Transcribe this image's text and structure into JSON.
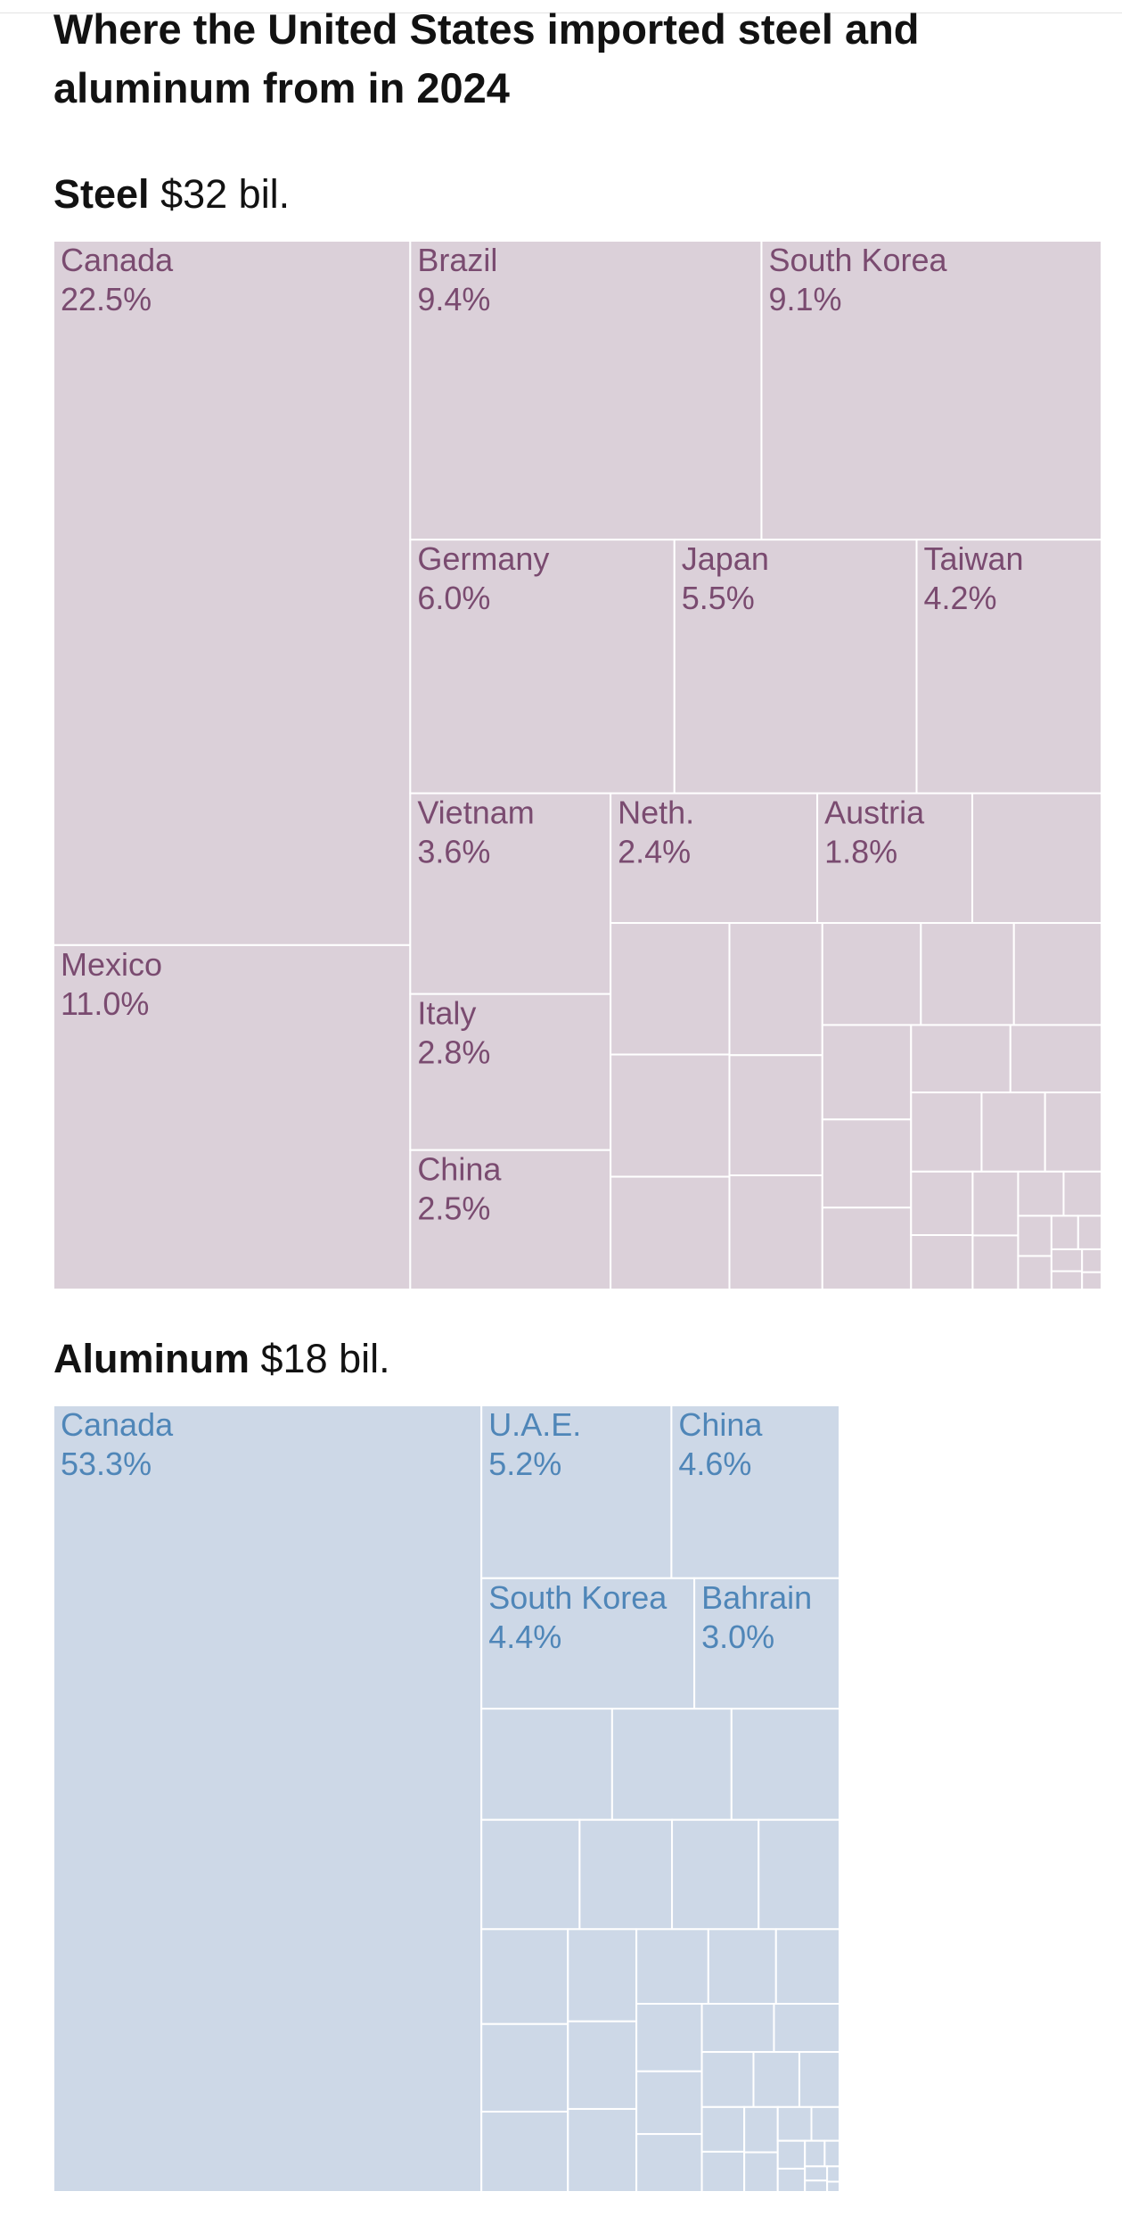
{
  "headline": "Where the United States imported steel and aluminum from in 2024",
  "chart_data": [
    {
      "type": "treemap",
      "title": "Steel",
      "total": "$32 bil.",
      "colors": {
        "fill": "#dbd0d9",
        "text": "#7a4b70",
        "stroke": "#ffffff"
      },
      "items": [
        {
          "name": "Canada",
          "value": 22.5,
          "label": "22.5%"
        },
        {
          "name": "Mexico",
          "value": 11.0,
          "label": "11.0%"
        },
        {
          "name": "Brazil",
          "value": 9.4,
          "label": "9.4%"
        },
        {
          "name": "South Korea",
          "value": 9.1,
          "label": "9.1%"
        },
        {
          "name": "Germany",
          "value": 6.0,
          "label": "6.0%"
        },
        {
          "name": "Japan",
          "value": 5.5,
          "label": "5.5%"
        },
        {
          "name": "Taiwan",
          "value": 4.2,
          "label": "4.2%"
        },
        {
          "name": "Vietnam",
          "value": 3.6,
          "label": "3.6%"
        },
        {
          "name": "Italy",
          "value": 2.8,
          "label": "2.8%"
        },
        {
          "name": "China",
          "value": 2.5,
          "label": "2.5%"
        },
        {
          "name": "Neth.",
          "value": 2.4,
          "label": "2.4%"
        },
        {
          "name": "Austria",
          "value": 1.8,
          "label": "1.8%"
        },
        {
          "name": "",
          "value": 1.5
        },
        {
          "name": "",
          "value": 1.4
        },
        {
          "name": "",
          "value": 1.3
        },
        {
          "name": "",
          "value": 1.2
        },
        {
          "name": "",
          "value": 1.1
        },
        {
          "name": "",
          "value": 1.0
        },
        {
          "name": "",
          "value": 0.95
        },
        {
          "name": "",
          "value": 0.9
        },
        {
          "name": "",
          "value": 0.85
        },
        {
          "name": "",
          "value": 0.8
        },
        {
          "name": "",
          "value": 0.75
        },
        {
          "name": "",
          "value": 0.7
        },
        {
          "name": "",
          "value": 0.65
        },
        {
          "name": "",
          "value": 0.6
        },
        {
          "name": "",
          "value": 0.55
        },
        {
          "name": "",
          "value": 0.5
        },
        {
          "name": "",
          "value": 0.45
        },
        {
          "name": "",
          "value": 0.4
        },
        {
          "name": "",
          "value": 0.35
        },
        {
          "name": "",
          "value": 0.3
        },
        {
          "name": "",
          "value": 0.26
        },
        {
          "name": "",
          "value": 0.22
        },
        {
          "name": "",
          "value": 0.18
        },
        {
          "name": "",
          "value": 0.15
        },
        {
          "name": "",
          "value": 0.12
        },
        {
          "name": "",
          "value": 0.1
        },
        {
          "name": "",
          "value": 0.08
        },
        {
          "name": "",
          "value": 0.07
        },
        {
          "name": "",
          "value": 0.06
        },
        {
          "name": "",
          "value": 0.05
        },
        {
          "name": "",
          "value": 0.04
        },
        {
          "name": "",
          "value": 0.03
        }
      ]
    },
    {
      "type": "treemap",
      "title": "Aluminum",
      "total": "$18 bil.",
      "colors": {
        "fill": "#cdd8e7",
        "text": "#4f86b8",
        "stroke": "#ffffff"
      },
      "items": [
        {
          "name": "Canada",
          "value": 53.3,
          "label": "53.3%"
        },
        {
          "name": "U.A.E.",
          "value": 5.2,
          "label": "5.2%"
        },
        {
          "name": "China",
          "value": 4.6,
          "label": "4.6%"
        },
        {
          "name": "South Korea",
          "value": 4.4,
          "label": "4.4%"
        },
        {
          "name": "Bahrain",
          "value": 3.0,
          "label": "3.0%"
        },
        {
          "name": "",
          "value": 2.3
        },
        {
          "name": "",
          "value": 2.1
        },
        {
          "name": "",
          "value": 1.9
        },
        {
          "name": "",
          "value": 1.7
        },
        {
          "name": "",
          "value": 1.6
        },
        {
          "name": "",
          "value": 1.5
        },
        {
          "name": "",
          "value": 1.4
        },
        {
          "name": "",
          "value": 1.3
        },
        {
          "name": "",
          "value": 1.2
        },
        {
          "name": "",
          "value": 1.1
        },
        {
          "name": "",
          "value": 1.0
        },
        {
          "name": "",
          "value": 0.95
        },
        {
          "name": "",
          "value": 0.9
        },
        {
          "name": "",
          "value": 0.85
        },
        {
          "name": "",
          "value": 0.8
        },
        {
          "name": "",
          "value": 0.75
        },
        {
          "name": "",
          "value": 0.7
        },
        {
          "name": "",
          "value": 0.65
        },
        {
          "name": "",
          "value": 0.6
        },
        {
          "name": "",
          "value": 0.55
        },
        {
          "name": "",
          "value": 0.5
        },
        {
          "name": "",
          "value": 0.45
        },
        {
          "name": "",
          "value": 0.4
        },
        {
          "name": "",
          "value": 0.35
        },
        {
          "name": "",
          "value": 0.3
        },
        {
          "name": "",
          "value": 0.27
        },
        {
          "name": "",
          "value": 0.24
        },
        {
          "name": "",
          "value": 0.21
        },
        {
          "name": "",
          "value": 0.18
        },
        {
          "name": "",
          "value": 0.15
        },
        {
          "name": "",
          "value": 0.12
        },
        {
          "name": "",
          "value": 0.1
        },
        {
          "name": "",
          "value": 0.08
        },
        {
          "name": "",
          "value": 0.06
        },
        {
          "name": "",
          "value": 0.05
        },
        {
          "name": "",
          "value": 0.04
        },
        {
          "name": "",
          "value": 0.03
        },
        {
          "name": "",
          "value": 0.02
        }
      ]
    }
  ]
}
